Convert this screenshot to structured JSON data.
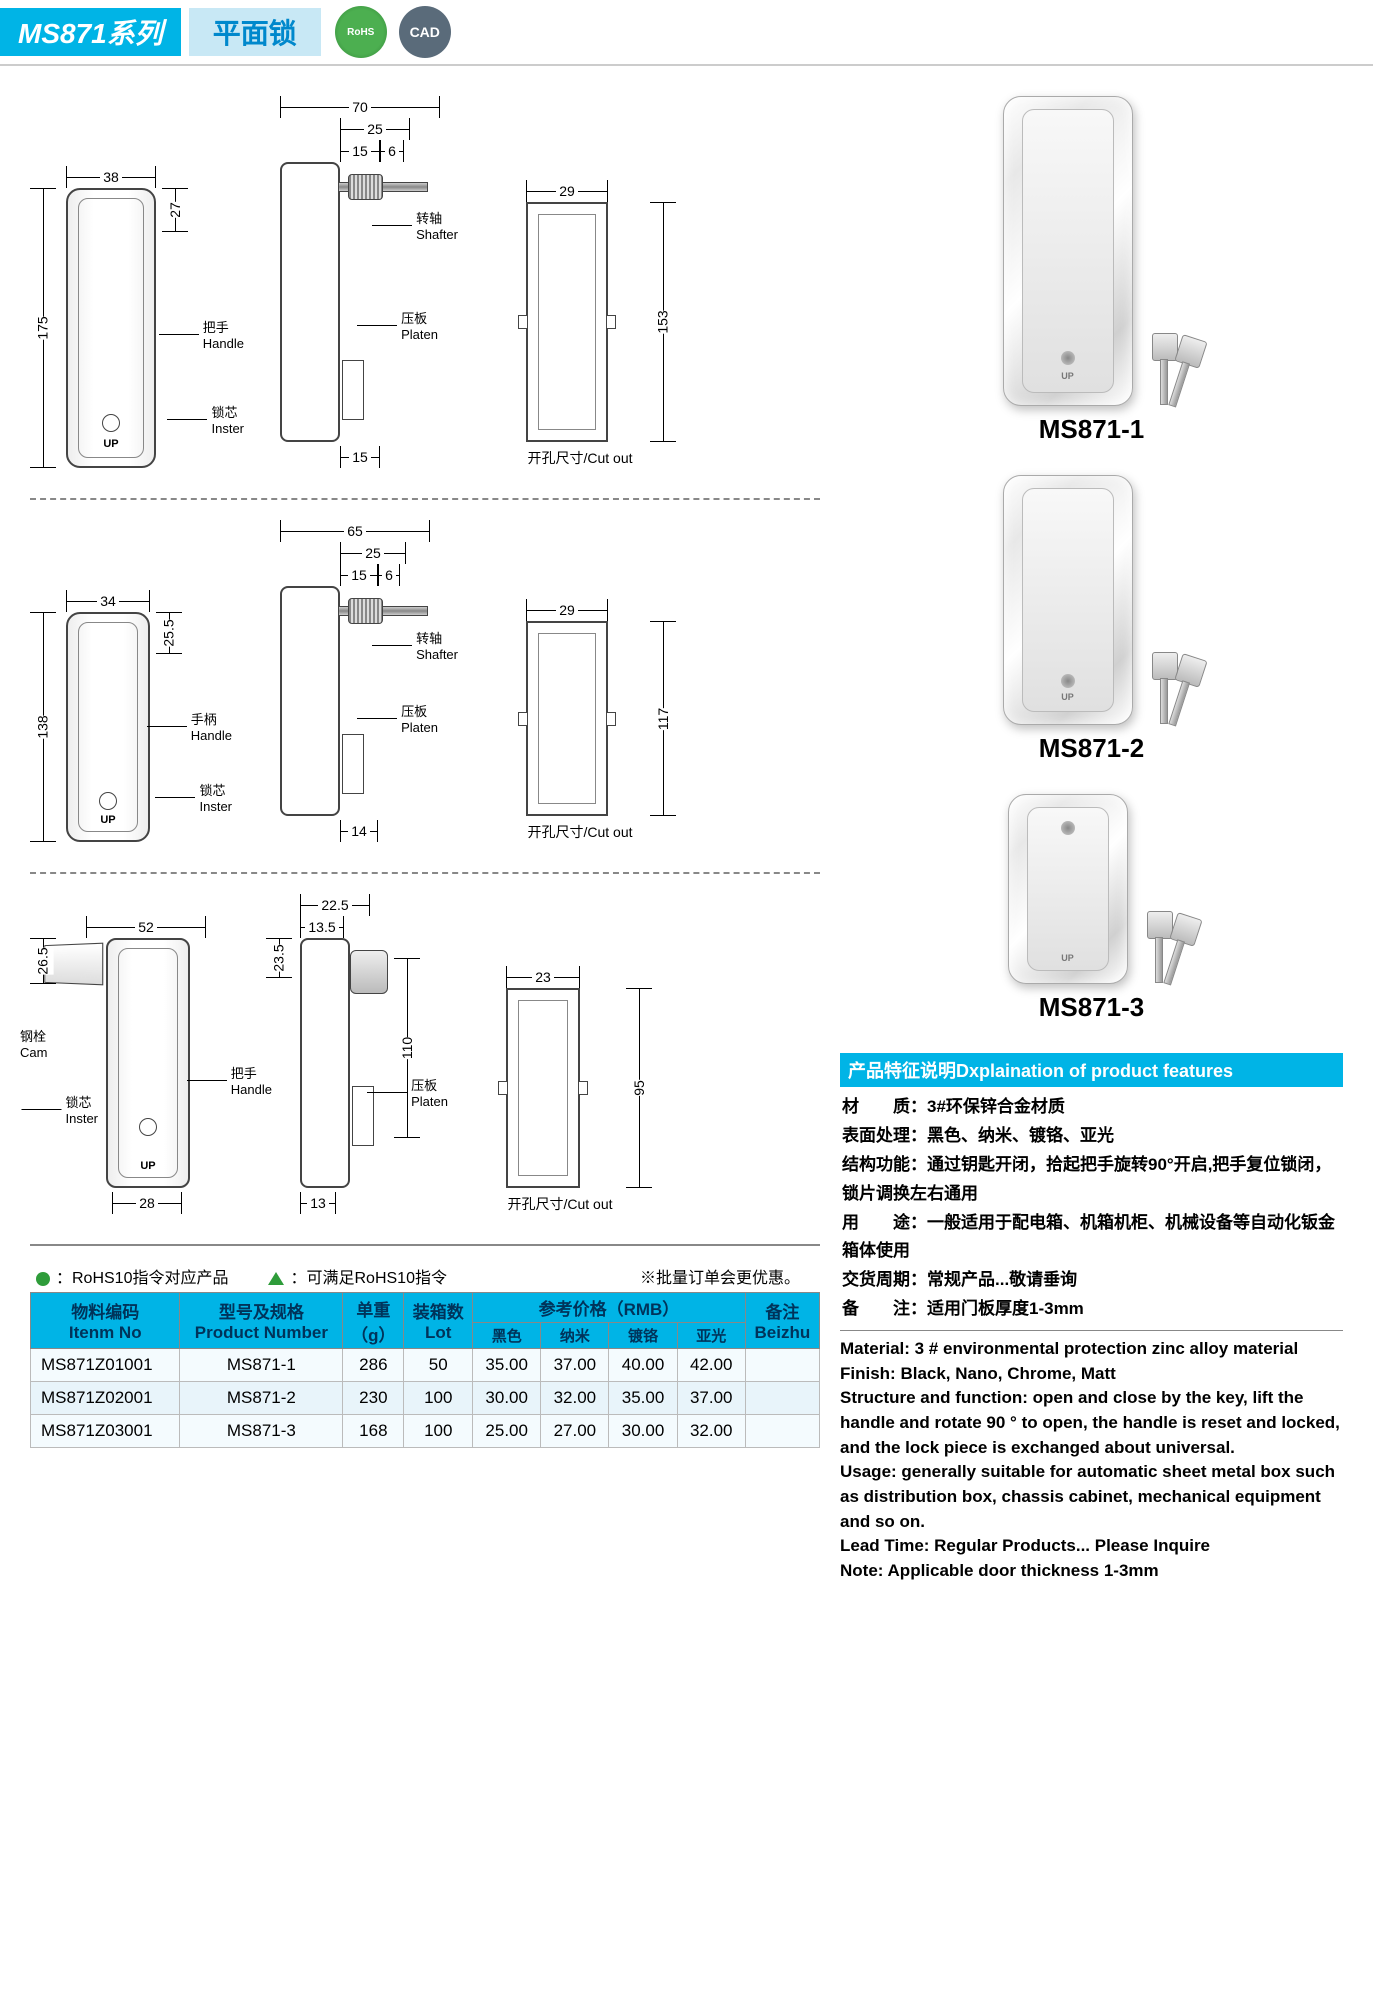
{
  "header": {
    "series": "MS871系列",
    "type": "平面锁",
    "rohs": "RoHS",
    "cad": "CAD"
  },
  "drawings": [
    {
      "front": {
        "width": "38",
        "height": "175",
        "top_h": "27",
        "handle_label": "把手\nHandle",
        "inster_label": "锁芯\nInster",
        "up": "UP",
        "body_h": 280,
        "body_w": 90
      },
      "side": {
        "total_w": "70",
        "inner_w": "25",
        "small_w": "15",
        "gap": "6",
        "shaft_label": "转轴\nShafter",
        "platen_label": "压板\nPlaten",
        "bottom_w": "15",
        "body_h": 280
      },
      "cutout": {
        "width": "29",
        "height": "153",
        "label": "开孔尺寸/Cut out",
        "body_h": 240,
        "body_w": 82
      }
    },
    {
      "front": {
        "width": "34",
        "height": "138",
        "top_h": "25.5",
        "handle_label": "手柄\nHandle",
        "inster_label": "锁芯\nInster",
        "up": "UP",
        "body_h": 230,
        "body_w": 84
      },
      "side": {
        "total_w": "65",
        "inner_w": "25",
        "small_w": "15",
        "gap": "6",
        "shaft_label": "转轴\nShafter",
        "platen_label": "压板\nPlaten",
        "bottom_w": "14",
        "body_h": 230
      },
      "cutout": {
        "width": "29",
        "height": "117",
        "label": "开孔尺寸/Cut out",
        "body_h": 195,
        "body_w": 82
      }
    },
    {
      "front": {
        "width": "52",
        "height_label_pos": "left",
        "top_h": "26.5",
        "cam_label": "钢栓\nCam",
        "handle_label": "把手\nHandle",
        "inster_label": "锁芯\nInster",
        "up": "UP",
        "body_h": 250,
        "body_w": 84,
        "bottom_w": "28",
        "has_cam": true
      },
      "side": {
        "total_w": "22.5",
        "inner_w": "13.5",
        "top_h": "23.5",
        "platen_label": "压板\nPlaten",
        "height": "110",
        "bottom_w": "13",
        "body_h": 250
      },
      "cutout": {
        "width": "23",
        "height": "95",
        "label": "开孔尺寸/Cut out",
        "body_h": 200,
        "body_w": 74
      }
    }
  ],
  "products": [
    {
      "label": "MS871-1",
      "lock_h": 310
    },
    {
      "label": "MS871-2",
      "lock_h": 250
    },
    {
      "label": "MS871-3",
      "lock_h": 190
    }
  ],
  "features": {
    "title": "产品特征说明Dxplaination of product features",
    "cn": {
      "material_lbl": "材　　质：",
      "material": "3#环保锌合金材质",
      "finish_lbl": "表面处理：",
      "finish": "黑色、纳米、镀铬、亚光",
      "struct_lbl": "结构功能：",
      "struct": "通过钥匙开闭，拾起把手旋转90°开启,把手复位锁闭，锁片调换左右通用",
      "usage_lbl": "用　　途：",
      "usage": "一般适用于配电箱、机箱机柜、机械设备等自动化钣金箱体使用",
      "lead_lbl": "交货周期：",
      "lead": "常规产品...敬请垂询",
      "note_lbl": "备　　注：",
      "note": "适用门板厚度1-3mm"
    },
    "en": {
      "material": "Material: 3 # environmental protection zinc alloy material",
      "finish": "Finish: Black, Nano, Chrome, Matt",
      "struct": "Structure and function: open and close by the key, lift the handle and rotate 90 ° to open, the handle is reset and locked, and the lock piece is exchanged about universal.",
      "usage": "Usage: generally suitable for automatic sheet metal box such as distribution box, chassis cabinet, mechanical equipment and so on.",
      "lead": "Lead Time: Regular Products... Please Inquire",
      "note": "Note: Applicable door thickness 1-3mm"
    }
  },
  "legend": {
    "rohs_product": "：RoHS10指令对应产品",
    "rohs_satisfy": "：可满足RoHS10指令",
    "bulk_note": "※批量订单会更优惠。"
  },
  "table": {
    "headers": {
      "item_no": "物料编码\nItenm No",
      "product_number": "型号及规格\nProduct Number",
      "weight": "单重\n（g）",
      "lot": "装箱数\nLot",
      "price_group": "参考价格（RMB）",
      "black": "黑色",
      "nano": "纳米",
      "chrome": "镀铬",
      "matt": "亚光",
      "remark": "备注\nBeizhu"
    },
    "rows": [
      {
        "item": "MS871Z01001",
        "pn": "MS871-1",
        "wt": "286",
        "lot": "50",
        "p1": "35.00",
        "p2": "37.00",
        "p3": "40.00",
        "p4": "42.00",
        "rm": ""
      },
      {
        "item": "MS871Z02001",
        "pn": "MS871-2",
        "wt": "230",
        "lot": "100",
        "p1": "30.00",
        "p2": "32.00",
        "p3": "35.00",
        "p4": "37.00",
        "rm": ""
      },
      {
        "item": "MS871Z03001",
        "pn": "MS871-3",
        "wt": "168",
        "lot": "100",
        "p1": "25.00",
        "p2": "27.00",
        "p3": "30.00",
        "p4": "32.00",
        "rm": ""
      }
    ]
  },
  "colors": {
    "header_bg": "#00b4e6",
    "header_light": "#c8e8f5",
    "green": "#2e9c3a"
  }
}
